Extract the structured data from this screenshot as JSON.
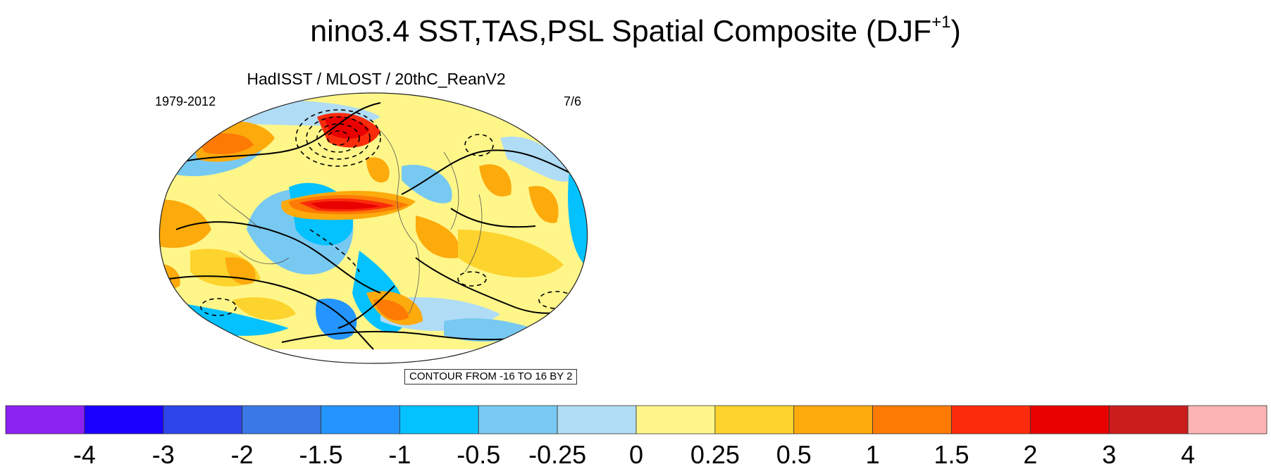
{
  "title": {
    "main": "nino3.4 SST,TAS,PSL Spatial Composite (DJF",
    "superscript": "+1",
    "close": ")"
  },
  "map_panel": {
    "subtitle": "HadISST / MLOST / 20thC_ReanV2",
    "period": "1979-2012",
    "count": "7/6",
    "contour_info": "CONTOUR FROM -16 TO 16 BY 2"
  },
  "colorbar": {
    "colors": [
      "#8c22f2",
      "#1c00ff",
      "#2d45ea",
      "#3978e6",
      "#2495ff",
      "#04c1ff",
      "#78c9f1",
      "#b0dcf5",
      "#fef689",
      "#fdd32d",
      "#fdaa0c",
      "#fd7a05",
      "#fb2c0b",
      "#e90000",
      "#cc1d1d",
      "#fdb4b4"
    ],
    "labels": [
      "-4",
      "-3",
      "-2",
      "-1.5",
      "-1",
      "-0.5",
      "-0.25",
      "0",
      "0.25",
      "0.5",
      "1",
      "1.5",
      "2",
      "3",
      "4"
    ]
  }
}
